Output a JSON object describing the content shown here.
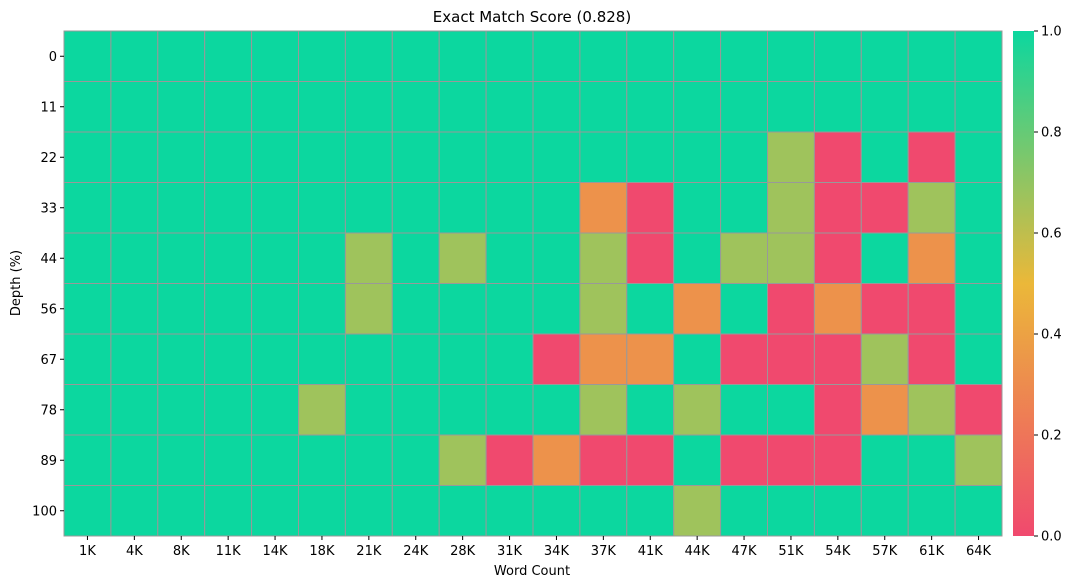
{
  "chart_data": {
    "type": "heatmap",
    "title": "Exact Match Score (0.828)",
    "xlabel": "Word Count",
    "ylabel": "Depth (%)",
    "x_categories": [
      "1K",
      "4K",
      "8K",
      "11K",
      "14K",
      "18K",
      "21K",
      "24K",
      "28K",
      "31K",
      "34K",
      "37K",
      "41K",
      "44K",
      "47K",
      "51K",
      "54K",
      "57K",
      "61K",
      "64K"
    ],
    "y_categories": [
      "0",
      "11",
      "22",
      "33",
      "44",
      "56",
      "67",
      "78",
      "89",
      "100"
    ],
    "values": [
      [
        1,
        1,
        1,
        1,
        1,
        1,
        1,
        1,
        1,
        1,
        1,
        1,
        1,
        1,
        1,
        1,
        1,
        1,
        1,
        1
      ],
      [
        1,
        1,
        1,
        1,
        1,
        1,
        1,
        1,
        1,
        1,
        1,
        1,
        1,
        1,
        1,
        1,
        1,
        1,
        1,
        1
      ],
      [
        1,
        1,
        1,
        1,
        1,
        1,
        1,
        1,
        1,
        1,
        1,
        1,
        1,
        1,
        1,
        0.67,
        0,
        1,
        0,
        1
      ],
      [
        1,
        1,
        1,
        1,
        1,
        1,
        1,
        1,
        1,
        1,
        1,
        0.33,
        0,
        1,
        1,
        0.67,
        0,
        0,
        0.67,
        1
      ],
      [
        1,
        1,
        1,
        1,
        1,
        1,
        0.67,
        1,
        0.67,
        1,
        1,
        0.67,
        0,
        1,
        0.67,
        0.67,
        0,
        1,
        0.33,
        1
      ],
      [
        1,
        1,
        1,
        1,
        1,
        1,
        0.67,
        1,
        1,
        1,
        1,
        0.67,
        1,
        0.33,
        1,
        0,
        0.33,
        0,
        0,
        1
      ],
      [
        1,
        1,
        1,
        1,
        1,
        1,
        1,
        1,
        1,
        1,
        0,
        0.33,
        0.33,
        1,
        0,
        0,
        0,
        0.67,
        0,
        1
      ],
      [
        1,
        1,
        1,
        1,
        1,
        0.67,
        1,
        1,
        1,
        1,
        1,
        0.67,
        1,
        0.67,
        1,
        1,
        0,
        0.33,
        0.67,
        0
      ],
      [
        1,
        1,
        1,
        1,
        1,
        1,
        1,
        1,
        0.67,
        0,
        0.33,
        0,
        0,
        1,
        0,
        0,
        0,
        1,
        1,
        0.67
      ],
      [
        1,
        1,
        1,
        1,
        1,
        1,
        1,
        1,
        1,
        1,
        1,
        1,
        1,
        0.67,
        1,
        1,
        1,
        1,
        1,
        1
      ]
    ],
    "vmin": 0,
    "vmax": 1,
    "colorbar_ticks": [
      "0.0",
      "0.2",
      "0.4",
      "0.6",
      "0.8",
      "1.0"
    ],
    "colorbar_values": [
      0,
      0.2,
      0.4,
      0.6,
      0.8,
      1.0
    ],
    "colormap": [
      "#F0496E",
      "#EBB839",
      "#0CD79F"
    ],
    "grid_line_color": "#999999"
  }
}
